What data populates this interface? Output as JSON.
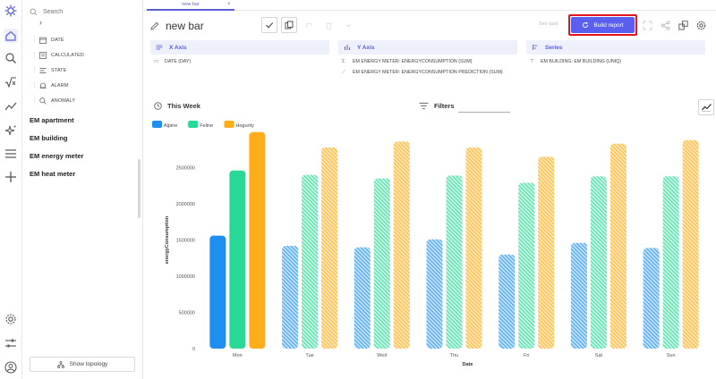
{
  "tab": {
    "label": "new bar",
    "close": "×"
  },
  "title": "new bar",
  "search": {
    "placeholder": "Search"
  },
  "sidebar": {
    "collapse_glyph": "›",
    "fields": [
      {
        "label": "DATE",
        "icon": "calendar-icon"
      },
      {
        "label": "CALCULATED",
        "icon": "calculated-icon"
      },
      {
        "label": "STATE",
        "icon": "state-icon"
      },
      {
        "label": "ALARM",
        "icon": "alarm-icon"
      },
      {
        "label": "ANOMALY",
        "icon": "anomaly-icon"
      }
    ],
    "groups": [
      "EM apartment",
      "EM building",
      "EM energy meter",
      "EM heat meter"
    ],
    "topology_button": "Show topology"
  },
  "toolbar": {
    "see_task": "See task",
    "build_report": "Build report"
  },
  "panels": {
    "x_axis": {
      "title": "X Axis",
      "items": [
        "DATE (DAY)"
      ]
    },
    "y_axis": {
      "title": "Y Axis",
      "items": [
        "EM ENERGY METER: ENERGYCONSUMPTION (SUM)",
        "EM ENERGY METER: ENERGYCONSUMPTION PREDICTION (SUM)"
      ]
    },
    "series": {
      "title": "Series",
      "items": [
        "EM BUILDING: EM BUILDING (UNIQ)"
      ]
    }
  },
  "chart_header": {
    "period": "This Week",
    "filters": "Filters"
  },
  "colors": {
    "accent": "#5b5ff0",
    "highlight_border": "#e4141b",
    "alpine": "#1e8ff0",
    "feline": "#28d897",
    "hogurity": "#ffad19"
  },
  "chart_data": {
    "type": "bar",
    "categories": [
      "Mon",
      "Tue",
      "Wed",
      "Thu",
      "Fri",
      "Sat",
      "Sun"
    ],
    "series": [
      {
        "name": "Alpine",
        "values": [
          1560000,
          1420000,
          1400000,
          1510000,
          1300000,
          1460000,
          1390000
        ]
      },
      {
        "name": "Feline",
        "values": [
          2460000,
          2400000,
          2350000,
          2390000,
          2290000,
          2380000,
          2380000
        ]
      },
      {
        "name": "Hogurity",
        "values": [
          2990000,
          2780000,
          2860000,
          2780000,
          2650000,
          2830000,
          2880000
        ]
      }
    ],
    "predicted_from_index": 1,
    "xlabel": "Date",
    "ylabel": "energyConsumption",
    "ylim": [
      0,
      3000000
    ],
    "yticks": [
      0,
      500000,
      1000000,
      1500000,
      2000000,
      2500000
    ],
    "grid": false,
    "legend": "top-left"
  }
}
